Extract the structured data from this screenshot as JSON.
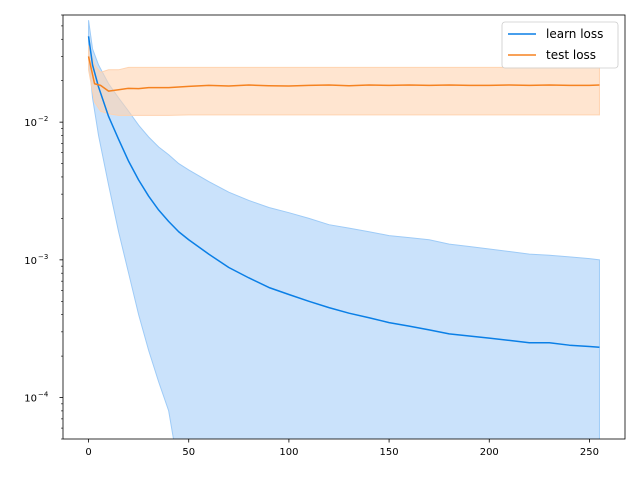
{
  "chart_data": {
    "type": "line",
    "title": "",
    "xlabel": "",
    "ylabel": "",
    "xscale": "linear",
    "yscale": "log",
    "xlim": [
      -12.75,
      267.75
    ],
    "ylim": [
      5e-05,
      0.06
    ],
    "xticks": [
      0,
      50,
      100,
      150,
      200,
      250
    ],
    "xtick_labels": [
      "0",
      "50",
      "100",
      "150",
      "200",
      "250"
    ],
    "yticks": [
      0.0001,
      0.001,
      0.01
    ],
    "ytick_labels": [
      "10",
      "10",
      "10"
    ],
    "ytick_exponents": [
      "−4",
      "−3",
      "−2"
    ],
    "grid": false,
    "legend_position": "top-right",
    "series": [
      {
        "name": "learn loss",
        "color": "#1f77b4",
        "line_color": "#0a7fe6",
        "band_color": "#9ecbf7",
        "x": [
          0,
          2,
          5,
          10,
          15,
          20,
          25,
          30,
          35,
          40,
          45,
          50,
          60,
          70,
          80,
          90,
          100,
          110,
          120,
          130,
          140,
          150,
          160,
          170,
          180,
          190,
          200,
          210,
          220,
          230,
          240,
          250,
          255
        ],
        "mean": [
          0.042,
          0.026,
          0.018,
          0.011,
          0.0075,
          0.0052,
          0.0038,
          0.0029,
          0.0023,
          0.0019,
          0.0016,
          0.0014,
          0.0011,
          0.00088,
          0.00074,
          0.00063,
          0.00056,
          0.0005,
          0.00045,
          0.00041,
          0.00038,
          0.00035,
          0.00033,
          0.00031,
          0.00029,
          0.00028,
          0.00027,
          0.00026,
          0.00025,
          0.00025,
          0.00024,
          0.000235,
          0.000232
        ],
        "upper": [
          0.055,
          0.034,
          0.026,
          0.019,
          0.015,
          0.012,
          0.0095,
          0.0078,
          0.0066,
          0.0058,
          0.005,
          0.0045,
          0.0037,
          0.0031,
          0.0027,
          0.0024,
          0.0022,
          0.002,
          0.0018,
          0.0017,
          0.0016,
          0.0015,
          0.00145,
          0.0014,
          0.0013,
          0.00125,
          0.0012,
          0.00115,
          0.0011,
          0.00108,
          0.00105,
          0.00102,
          0.001
        ],
        "lower": [
          0.03,
          0.015,
          0.008,
          0.0035,
          0.0016,
          0.0008,
          0.0004,
          0.00022,
          0.00013,
          8e-05,
          3e-05,
          3e-05,
          3e-05,
          3e-05,
          3e-05,
          3e-05,
          3e-05,
          3e-05,
          3e-05,
          3e-05,
          3e-05,
          3e-05,
          3e-05,
          3e-05,
          3e-05,
          3e-05,
          3e-05,
          3e-05,
          3e-05,
          3e-05,
          3e-05,
          3e-05,
          3e-05
        ]
      },
      {
        "name": "test loss",
        "color": "#ff7f0e",
        "line_color": "#f58220",
        "band_color": "#ffd3b0",
        "x": [
          0,
          3,
          6,
          10,
          15,
          20,
          25,
          30,
          40,
          50,
          60,
          70,
          80,
          90,
          100,
          110,
          120,
          130,
          140,
          150,
          160,
          170,
          180,
          190,
          200,
          210,
          220,
          230,
          240,
          250,
          255
        ],
        "mean": [
          0.03,
          0.019,
          0.0185,
          0.0168,
          0.0172,
          0.0176,
          0.0175,
          0.0178,
          0.0178,
          0.0182,
          0.0185,
          0.0183,
          0.0186,
          0.0184,
          0.0183,
          0.0185,
          0.0186,
          0.0184,
          0.0186,
          0.0185,
          0.0186,
          0.0185,
          0.0186,
          0.0185,
          0.0185,
          0.0186,
          0.0185,
          0.0186,
          0.0185,
          0.0185,
          0.0186
        ],
        "upper": [
          0.036,
          0.026,
          0.023,
          0.024,
          0.024,
          0.025,
          0.025,
          0.025,
          0.025,
          0.025,
          0.025,
          0.025,
          0.025,
          0.025,
          0.025,
          0.025,
          0.025,
          0.025,
          0.025,
          0.025,
          0.025,
          0.025,
          0.025,
          0.025,
          0.025,
          0.025,
          0.025,
          0.025,
          0.025,
          0.025,
          0.025
        ],
        "lower": [
          0.024,
          0.014,
          0.012,
          0.0115,
          0.0112,
          0.0112,
          0.0112,
          0.0112,
          0.0112,
          0.0113,
          0.0113,
          0.0113,
          0.0113,
          0.0113,
          0.0113,
          0.0113,
          0.0113,
          0.0113,
          0.0113,
          0.0113,
          0.0113,
          0.0113,
          0.0113,
          0.0113,
          0.0113,
          0.0113,
          0.0113,
          0.0113,
          0.0113,
          0.0113,
          0.0113
        ]
      }
    ]
  }
}
